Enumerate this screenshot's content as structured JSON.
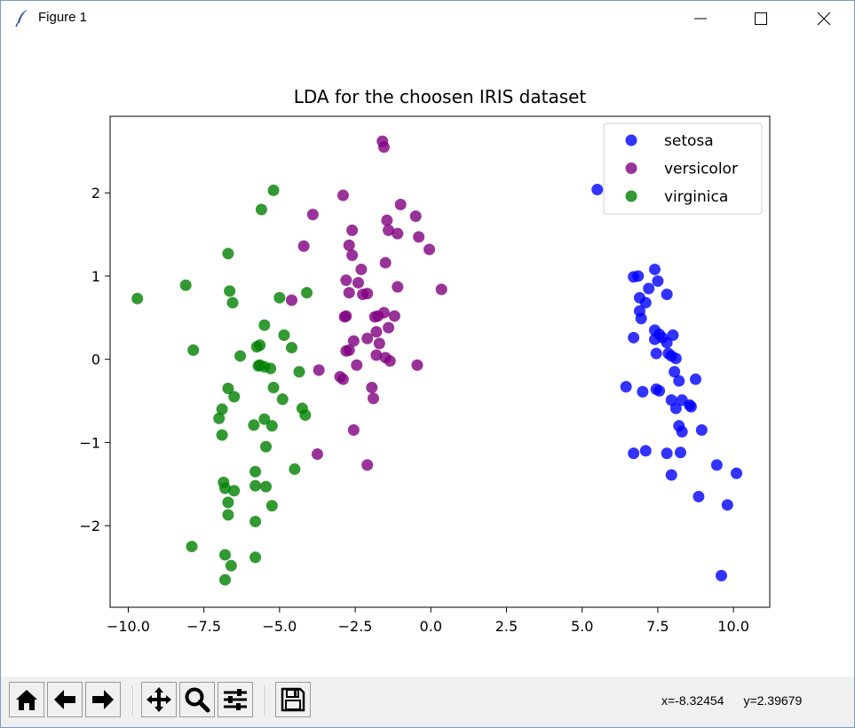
{
  "window": {
    "title": "Figure 1",
    "app_icon": "feather-icon",
    "controls": [
      "minimize-icon",
      "maximize-icon",
      "close-icon"
    ]
  },
  "toolbar": {
    "buttons": [
      "home-icon",
      "back-arrow-icon",
      "forward-arrow-icon",
      "pan-icon",
      "zoom-icon",
      "configure-subplots-icon",
      "save-icon"
    ],
    "coord_x": "x=-8.32454",
    "coord_y": "y=2.39679"
  },
  "chart_data": {
    "type": "scatter",
    "title": "LDA for the choosen IRIS dataset",
    "xlabel": "",
    "ylabel": "",
    "xlim": [
      -10.6,
      11.2
    ],
    "ylim": [
      -2.98,
      2.92
    ],
    "xticks": [
      -10.0,
      -7.5,
      -5.0,
      -2.5,
      0.0,
      2.5,
      5.0,
      7.5,
      10.0
    ],
    "xtick_labels": [
      "−10.0",
      "−7.5",
      "−5.0",
      "−2.5",
      "0.0",
      "2.5",
      "5.0",
      "7.5",
      "10.0"
    ],
    "yticks": [
      -2,
      -1,
      0,
      1,
      2
    ],
    "ytick_labels": [
      "−2",
      "−1",
      "0",
      "1",
      "2"
    ],
    "grid": false,
    "legend_position": "top-right",
    "series": [
      {
        "name": "setosa",
        "color": "#0000ff",
        "points": [
          [
            5.5,
            2.04
          ],
          [
            6.7,
            0.99
          ],
          [
            6.85,
            1.0
          ],
          [
            7.4,
            1.08
          ],
          [
            7.5,
            0.94
          ],
          [
            7.2,
            0.85
          ],
          [
            7.8,
            0.78
          ],
          [
            6.9,
            0.74
          ],
          [
            7.1,
            0.68
          ],
          [
            6.9,
            0.58
          ],
          [
            6.95,
            0.49
          ],
          [
            7.4,
            0.35
          ],
          [
            7.55,
            0.3
          ],
          [
            7.65,
            0.26
          ],
          [
            8.0,
            0.29
          ],
          [
            7.4,
            0.24
          ],
          [
            7.8,
            0.2
          ],
          [
            6.7,
            0.26
          ],
          [
            7.45,
            0.07
          ],
          [
            7.85,
            0.07
          ],
          [
            7.95,
            0.04
          ],
          [
            8.1,
            0.01
          ],
          [
            8.05,
            -0.15
          ],
          [
            8.2,
            -0.26
          ],
          [
            8.75,
            -0.24
          ],
          [
            6.45,
            -0.33
          ],
          [
            7.0,
            -0.39
          ],
          [
            7.45,
            -0.36
          ],
          [
            7.55,
            -0.38
          ],
          [
            7.95,
            -0.49
          ],
          [
            8.3,
            -0.49
          ],
          [
            8.55,
            -0.55
          ],
          [
            8.1,
            -0.59
          ],
          [
            8.6,
            -0.57
          ],
          [
            8.2,
            -0.8
          ],
          [
            8.3,
            -0.87
          ],
          [
            8.95,
            -0.85
          ],
          [
            6.7,
            -1.13
          ],
          [
            7.1,
            -1.1
          ],
          [
            7.8,
            -1.13
          ],
          [
            8.25,
            -1.12
          ],
          [
            7.95,
            -1.39
          ],
          [
            9.45,
            -1.27
          ],
          [
            10.1,
            -1.37
          ],
          [
            8.85,
            -1.65
          ],
          [
            9.8,
            -1.75
          ],
          [
            9.6,
            -2.6
          ]
        ]
      },
      {
        "name": "versicolor",
        "color": "#800080",
        "points": [
          [
            -1.6,
            2.62
          ],
          [
            -1.55,
            2.55
          ],
          [
            -2.9,
            1.97
          ],
          [
            -1.0,
            1.86
          ],
          [
            -3.9,
            1.74
          ],
          [
            -0.5,
            1.72
          ],
          [
            -1.45,
            1.67
          ],
          [
            -2.6,
            1.55
          ],
          [
            -1.4,
            1.55
          ],
          [
            -1.1,
            1.51
          ],
          [
            -0.4,
            1.47
          ],
          [
            -2.7,
            1.37
          ],
          [
            -4.2,
            1.36
          ],
          [
            -0.05,
            1.32
          ],
          [
            -2.6,
            1.25
          ],
          [
            -1.5,
            1.16
          ],
          [
            -2.3,
            1.08
          ],
          [
            -2.8,
            0.95
          ],
          [
            -2.4,
            0.92
          ],
          [
            -1.1,
            0.87
          ],
          [
            0.35,
            0.84
          ],
          [
            -2.7,
            0.8
          ],
          [
            -2.25,
            0.78
          ],
          [
            -2.1,
            0.79
          ],
          [
            -4.6,
            0.71
          ],
          [
            -2.8,
            0.52
          ],
          [
            -2.85,
            0.51
          ],
          [
            -1.85,
            0.51
          ],
          [
            -1.55,
            0.56
          ],
          [
            -1.75,
            0.52
          ],
          [
            -1.2,
            0.52
          ],
          [
            -1.4,
            0.38
          ],
          [
            -1.8,
            0.33
          ],
          [
            -2.1,
            0.25
          ],
          [
            -2.55,
            0.22
          ],
          [
            -1.7,
            0.19
          ],
          [
            -2.8,
            0.1
          ],
          [
            -2.7,
            0.11
          ],
          [
            -1.8,
            0.05
          ],
          [
            -1.5,
            0.02
          ],
          [
            -1.35,
            -0.02
          ],
          [
            -2.45,
            -0.07
          ],
          [
            -0.45,
            -0.07
          ],
          [
            -3.7,
            -0.13
          ],
          [
            -3.0,
            -0.21
          ],
          [
            -2.9,
            -0.24
          ],
          [
            -1.95,
            -0.34
          ],
          [
            -1.9,
            -0.47
          ],
          [
            -2.55,
            -0.85
          ],
          [
            -3.75,
            -1.14
          ],
          [
            -2.1,
            -1.27
          ]
        ]
      },
      {
        "name": "virginica",
        "color": "#008000",
        "points": [
          [
            -5.2,
            2.03
          ],
          [
            -5.6,
            1.8
          ],
          [
            -6.7,
            1.27
          ],
          [
            -9.7,
            0.73
          ],
          [
            -8.1,
            0.89
          ],
          [
            -6.65,
            0.82
          ],
          [
            -6.55,
            0.68
          ],
          [
            -5.0,
            0.74
          ],
          [
            -4.1,
            0.8
          ],
          [
            -5.5,
            0.41
          ],
          [
            -4.85,
            0.29
          ],
          [
            -5.75,
            0.15
          ],
          [
            -5.65,
            0.17
          ],
          [
            -4.6,
            0.14
          ],
          [
            -7.85,
            0.11
          ],
          [
            -6.3,
            0.04
          ],
          [
            -5.65,
            -0.07
          ],
          [
            -5.7,
            -0.08
          ],
          [
            -5.5,
            -0.09
          ],
          [
            -5.3,
            -0.11
          ],
          [
            -4.35,
            -0.15
          ],
          [
            -6.7,
            -0.35
          ],
          [
            -5.2,
            -0.34
          ],
          [
            -6.5,
            -0.45
          ],
          [
            -4.9,
            -0.48
          ],
          [
            -4.25,
            -0.59
          ],
          [
            -4.15,
            -0.67
          ],
          [
            -6.9,
            -0.6
          ],
          [
            -7.0,
            -0.71
          ],
          [
            -5.5,
            -0.72
          ],
          [
            -5.85,
            -0.79
          ],
          [
            -5.25,
            -0.8
          ],
          [
            -6.9,
            -0.91
          ],
          [
            -5.45,
            -1.05
          ],
          [
            -4.5,
            -1.32
          ],
          [
            -5.8,
            -1.35
          ],
          [
            -6.85,
            -1.48
          ],
          [
            -6.8,
            -1.55
          ],
          [
            -6.5,
            -1.58
          ],
          [
            -5.8,
            -1.52
          ],
          [
            -5.45,
            -1.53
          ],
          [
            -6.7,
            -1.72
          ],
          [
            -5.25,
            -1.76
          ],
          [
            -6.7,
            -1.87
          ],
          [
            -5.8,
            -1.95
          ],
          [
            -7.9,
            -2.25
          ],
          [
            -6.8,
            -2.35
          ],
          [
            -5.8,
            -2.38
          ],
          [
            -6.6,
            -2.48
          ],
          [
            -6.8,
            -2.65
          ]
        ]
      }
    ]
  }
}
